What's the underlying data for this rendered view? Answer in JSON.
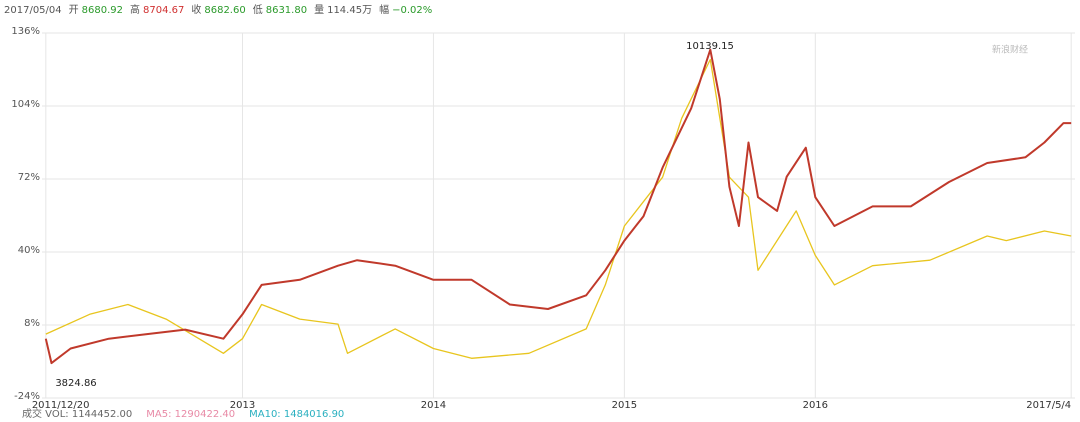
{
  "header": [
    {
      "value": "2017/05/04",
      "color": "#555555"
    },
    {
      "label": "开",
      "value": "8680.92",
      "color": "#2a9a2a"
    },
    {
      "label": "高",
      "value": "8704.67",
      "color": "#d03030"
    },
    {
      "label": "收",
      "value": "8682.60",
      "color": "#2a9a2a"
    },
    {
      "label": "低",
      "value": "8631.80",
      "color": "#2a9a2a"
    },
    {
      "label": "量",
      "value": "114.45万",
      "color": "#555555"
    },
    {
      "label": "幅",
      "value": "−0.02%",
      "color": "#2a9a2a"
    }
  ],
  "footer": [
    {
      "value": "成交 VOL: 1144452.00",
      "color": "#666666"
    },
    {
      "value": "MA5: 1290422.40",
      "color": "#e88aa6"
    },
    {
      "value": "MA10: 1484016.90",
      "color": "#2ab0c0"
    }
  ],
  "watermark": "新浪财经",
  "chart_data": {
    "type": "line",
    "annotations": [
      "10139.15",
      "3824.86"
    ],
    "series": [
      {
        "color": "#c0392b",
        "x": [
          2011.97,
          2012.0,
          2012.1,
          2012.3,
          2012.5,
          2012.7,
          2012.9,
          2013.0,
          2013.1,
          2013.3,
          2013.5,
          2013.6,
          2013.8,
          2014.0,
          2014.2,
          2014.4,
          2014.6,
          2014.8,
          2014.9,
          2015.0,
          2015.1,
          2015.2,
          2015.35,
          2015.45,
          2015.5,
          2015.55,
          2015.6,
          2015.65,
          2015.7,
          2015.8,
          2015.85,
          2015.95,
          2016.0,
          2016.1,
          2016.3,
          2016.5,
          2016.7,
          2016.9,
          2017.1,
          2017.2,
          2017.3,
          2017.34
        ],
        "values": [
          2,
          -8.7,
          -2.3,
          2,
          4,
          6,
          2,
          12.7,
          25.6,
          27.8,
          34,
          36.4,
          34,
          27.8,
          27.8,
          17,
          15,
          21,
          32,
          45,
          55.7,
          77,
          103,
          128.7,
          107,
          68.6,
          51.4,
          88,
          64,
          58,
          73,
          85.7,
          64,
          51.4,
          60,
          60,
          70.7,
          79,
          81.5,
          88,
          96.5,
          96.5
        ]
      },
      {
        "color": "#e8c51e",
        "x": [
          2011.97,
          2012.2,
          2012.4,
          2012.6,
          2012.9,
          2013.0,
          2013.1,
          2013.3,
          2013.5,
          2013.55,
          2013.8,
          2014.0,
          2014.2,
          2014.5,
          2014.8,
          2014.9,
          2015.0,
          2015.2,
          2015.3,
          2015.45,
          2015.55,
          2015.65,
          2015.7,
          2015.9,
          2016.0,
          2016.1,
          2016.3,
          2016.6,
          2016.9,
          2017.0,
          2017.2,
          2017.34
        ],
        "values": [
          4,
          12.7,
          17,
          10.6,
          -4.4,
          2,
          17,
          10.6,
          8.4,
          -4.4,
          6.3,
          -2.3,
          -6.6,
          -4.4,
          6.3,
          25.6,
          51.4,
          72.8,
          98.6,
          124.4,
          72.8,
          64,
          32,
          58,
          38.5,
          25.6,
          34,
          36.4,
          47,
          45,
          49.2,
          47
        ]
      }
    ],
    "xlim": [
      2011.95,
      2017.36
    ],
    "xticks": [
      {
        "value": 2011.97,
        "label": "2011/12/20"
      },
      2013,
      2014,
      2015,
      2016,
      {
        "value": 2017.34,
        "label": "2017/5/4"
      }
    ],
    "ylim": [
      -24,
      136
    ],
    "yticks": [
      {
        "value": -24,
        "label": "-24%"
      },
      {
        "value": 8,
        "label": "8%"
      },
      {
        "value": 40,
        "label": "40%"
      },
      {
        "value": 72,
        "label": "72%"
      },
      {
        "value": 104,
        "label": "104%"
      },
      {
        "value": 136,
        "label": "136%"
      }
    ],
    "grid": true
  }
}
